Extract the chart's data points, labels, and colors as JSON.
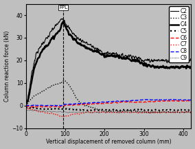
{
  "xlabel": "Vertical displacement of removed column (mm)",
  "ylabel": "Column reaction force (kN)",
  "xlim": [
    0,
    420
  ],
  "ylim": [
    -10,
    45
  ],
  "yticks": [
    -10,
    0,
    10,
    20,
    30,
    40
  ],
  "xticks": [
    0,
    100,
    200,
    300,
    400
  ],
  "fpl_x": 95,
  "bg_color": "#bfbfbf",
  "c2": {
    "x": [
      0,
      5,
      10,
      15,
      20,
      25,
      30,
      35,
      40,
      45,
      50,
      55,
      60,
      65,
      70,
      75,
      80,
      85,
      88,
      90,
      92,
      95,
      100,
      110,
      120,
      130,
      140,
      150,
      160,
      170,
      180,
      190,
      200,
      210,
      220,
      230,
      240,
      250,
      260,
      270,
      280,
      290,
      300,
      310,
      320,
      330,
      340,
      350,
      360,
      370,
      380,
      390,
      400,
      410,
      420
    ],
    "y": [
      0,
      3,
      8,
      14,
      18,
      22,
      24,
      25,
      27,
      28,
      29,
      30,
      31,
      33,
      34,
      35,
      36,
      37,
      37.5,
      38,
      38.5,
      39,
      37,
      34,
      32,
      30,
      29,
      28,
      27,
      26,
      25,
      24,
      23,
      23,
      23,
      23,
      22,
      22,
      22,
      22,
      21,
      21,
      20,
      20,
      20,
      20,
      20,
      20,
      20,
      20,
      20,
      20,
      20,
      20,
      20
    ]
  },
  "c4": {
    "x": [
      0,
      5,
      10,
      15,
      20,
      25,
      30,
      35,
      40,
      45,
      50,
      55,
      60,
      65,
      70,
      75,
      80,
      85,
      88,
      90,
      92,
      95,
      100,
      110,
      120,
      130,
      140,
      150,
      160,
      170,
      180,
      190,
      200,
      210,
      220,
      230,
      240,
      250,
      260,
      270,
      280,
      290,
      300,
      310,
      320,
      330,
      340,
      350,
      360,
      370,
      380,
      390,
      400,
      410,
      420
    ],
    "y": [
      0,
      2,
      6,
      11,
      15,
      18,
      21,
      22,
      24,
      25,
      26,
      27,
      28,
      29,
      30,
      31,
      32,
      33,
      34,
      35,
      36,
      37,
      35,
      32,
      30,
      28,
      27,
      26,
      25,
      24,
      24,
      23,
      22,
      22,
      22,
      22,
      21,
      21,
      21,
      20,
      20,
      19,
      18,
      18,
      17,
      17,
      17,
      17,
      17,
      17,
      17,
      17,
      17,
      17,
      17
    ]
  },
  "c3": {
    "x": [
      0,
      10,
      20,
      30,
      40,
      50,
      60,
      70,
      80,
      90,
      95,
      100,
      110,
      120,
      130,
      140,
      150,
      160,
      170,
      180,
      190,
      200,
      210,
      220,
      230,
      240,
      250,
      260,
      270,
      280,
      300,
      320,
      350,
      400,
      420
    ],
    "y": [
      0,
      2,
      4,
      5,
      6,
      7,
      8,
      9,
      9.5,
      10,
      11,
      11,
      9,
      6,
      3,
      1,
      0,
      -0.5,
      -1,
      -1.5,
      -2,
      -2.5,
      -2.5,
      -2.5,
      -2.5,
      -2.5,
      -2.5,
      -2.5,
      -2.5,
      -2.5,
      -3,
      -3,
      -3,
      -3,
      -3
    ]
  },
  "c5": {
    "x": [
      0,
      50,
      100,
      150,
      200,
      250,
      300,
      350,
      400,
      420
    ],
    "y": [
      -1,
      -1.5,
      -1.5,
      -2,
      -2,
      -2,
      -2,
      -2,
      -2,
      -2
    ]
  },
  "c6": {
    "x": [
      0,
      50,
      95,
      100,
      150,
      200,
      250,
      300,
      350,
      400,
      420
    ],
    "y": [
      -0.5,
      -0.5,
      -0.5,
      0,
      0.5,
      1,
      1.5,
      1.5,
      2,
      2,
      2
    ]
  },
  "c7": {
    "x": [
      0,
      20,
      40,
      60,
      80,
      95,
      100,
      110,
      120,
      140,
      160,
      180,
      200,
      220,
      250,
      280,
      300,
      350,
      400,
      420
    ],
    "y": [
      -1,
      -2,
      -3,
      -3.5,
      -4,
      -5,
      -5,
      -4.5,
      -4,
      -3.5,
      -3,
      -3,
      -3,
      -3,
      -3,
      -3,
      -3,
      -3,
      -3,
      -3
    ]
  },
  "c8": {
    "x": [
      0,
      50,
      95,
      100,
      150,
      200,
      250,
      300,
      350,
      400,
      420
    ],
    "y": [
      0,
      0,
      0,
      0.5,
      1,
      1.5,
      2,
      2.5,
      2.5,
      2.5,
      2.5
    ]
  },
  "c9": {
    "x": [
      0,
      50,
      100,
      150,
      200,
      250,
      300,
      350,
      400,
      420
    ],
    "y": [
      -2,
      -2.5,
      -3,
      -3,
      -3,
      -3,
      -3,
      -3,
      -3,
      -3
    ]
  }
}
